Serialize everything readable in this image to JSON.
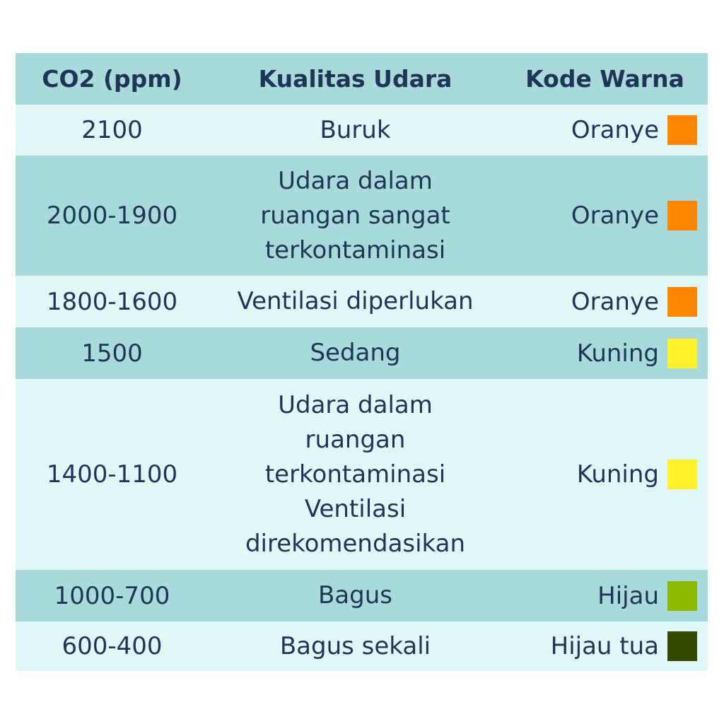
{
  "headers": {
    "co2": "CO2 (ppm)",
    "quality": "Kualitas Udara",
    "color_code": "Kode Warna"
  },
  "rows": [
    {
      "co2": "2100",
      "quality": "Buruk",
      "color_name": "Oranye",
      "swatch": "#ff8400"
    },
    {
      "co2": "2000-1900",
      "quality": "Udara dalam\nruangan sangat\nterkontaminasi",
      "color_name": "Oranye",
      "swatch": "#ff8400"
    },
    {
      "co2": "1800-1600",
      "quality": "Ventilasi diperlukan",
      "color_name": "Oranye",
      "swatch": "#ff8400"
    },
    {
      "co2": "1500",
      "quality": "Sedang",
      "color_name": "Kuning",
      "swatch": "#fff02a"
    },
    {
      "co2": "1400-1100",
      "quality": "Udara  dalam\nruangan\nterkontaminasi\nVentilasi\ndirekomendasikan",
      "color_name": "Kuning",
      "swatch": "#fff02a"
    },
    {
      "co2": "1000-700",
      "quality": "Bagus",
      "color_name": "Hijau",
      "swatch": "#8cb800"
    },
    {
      "co2": "600-400",
      "quality": "Bagus sekali",
      "color_name": "Hijau tua",
      "swatch": "#344a00"
    }
  ]
}
